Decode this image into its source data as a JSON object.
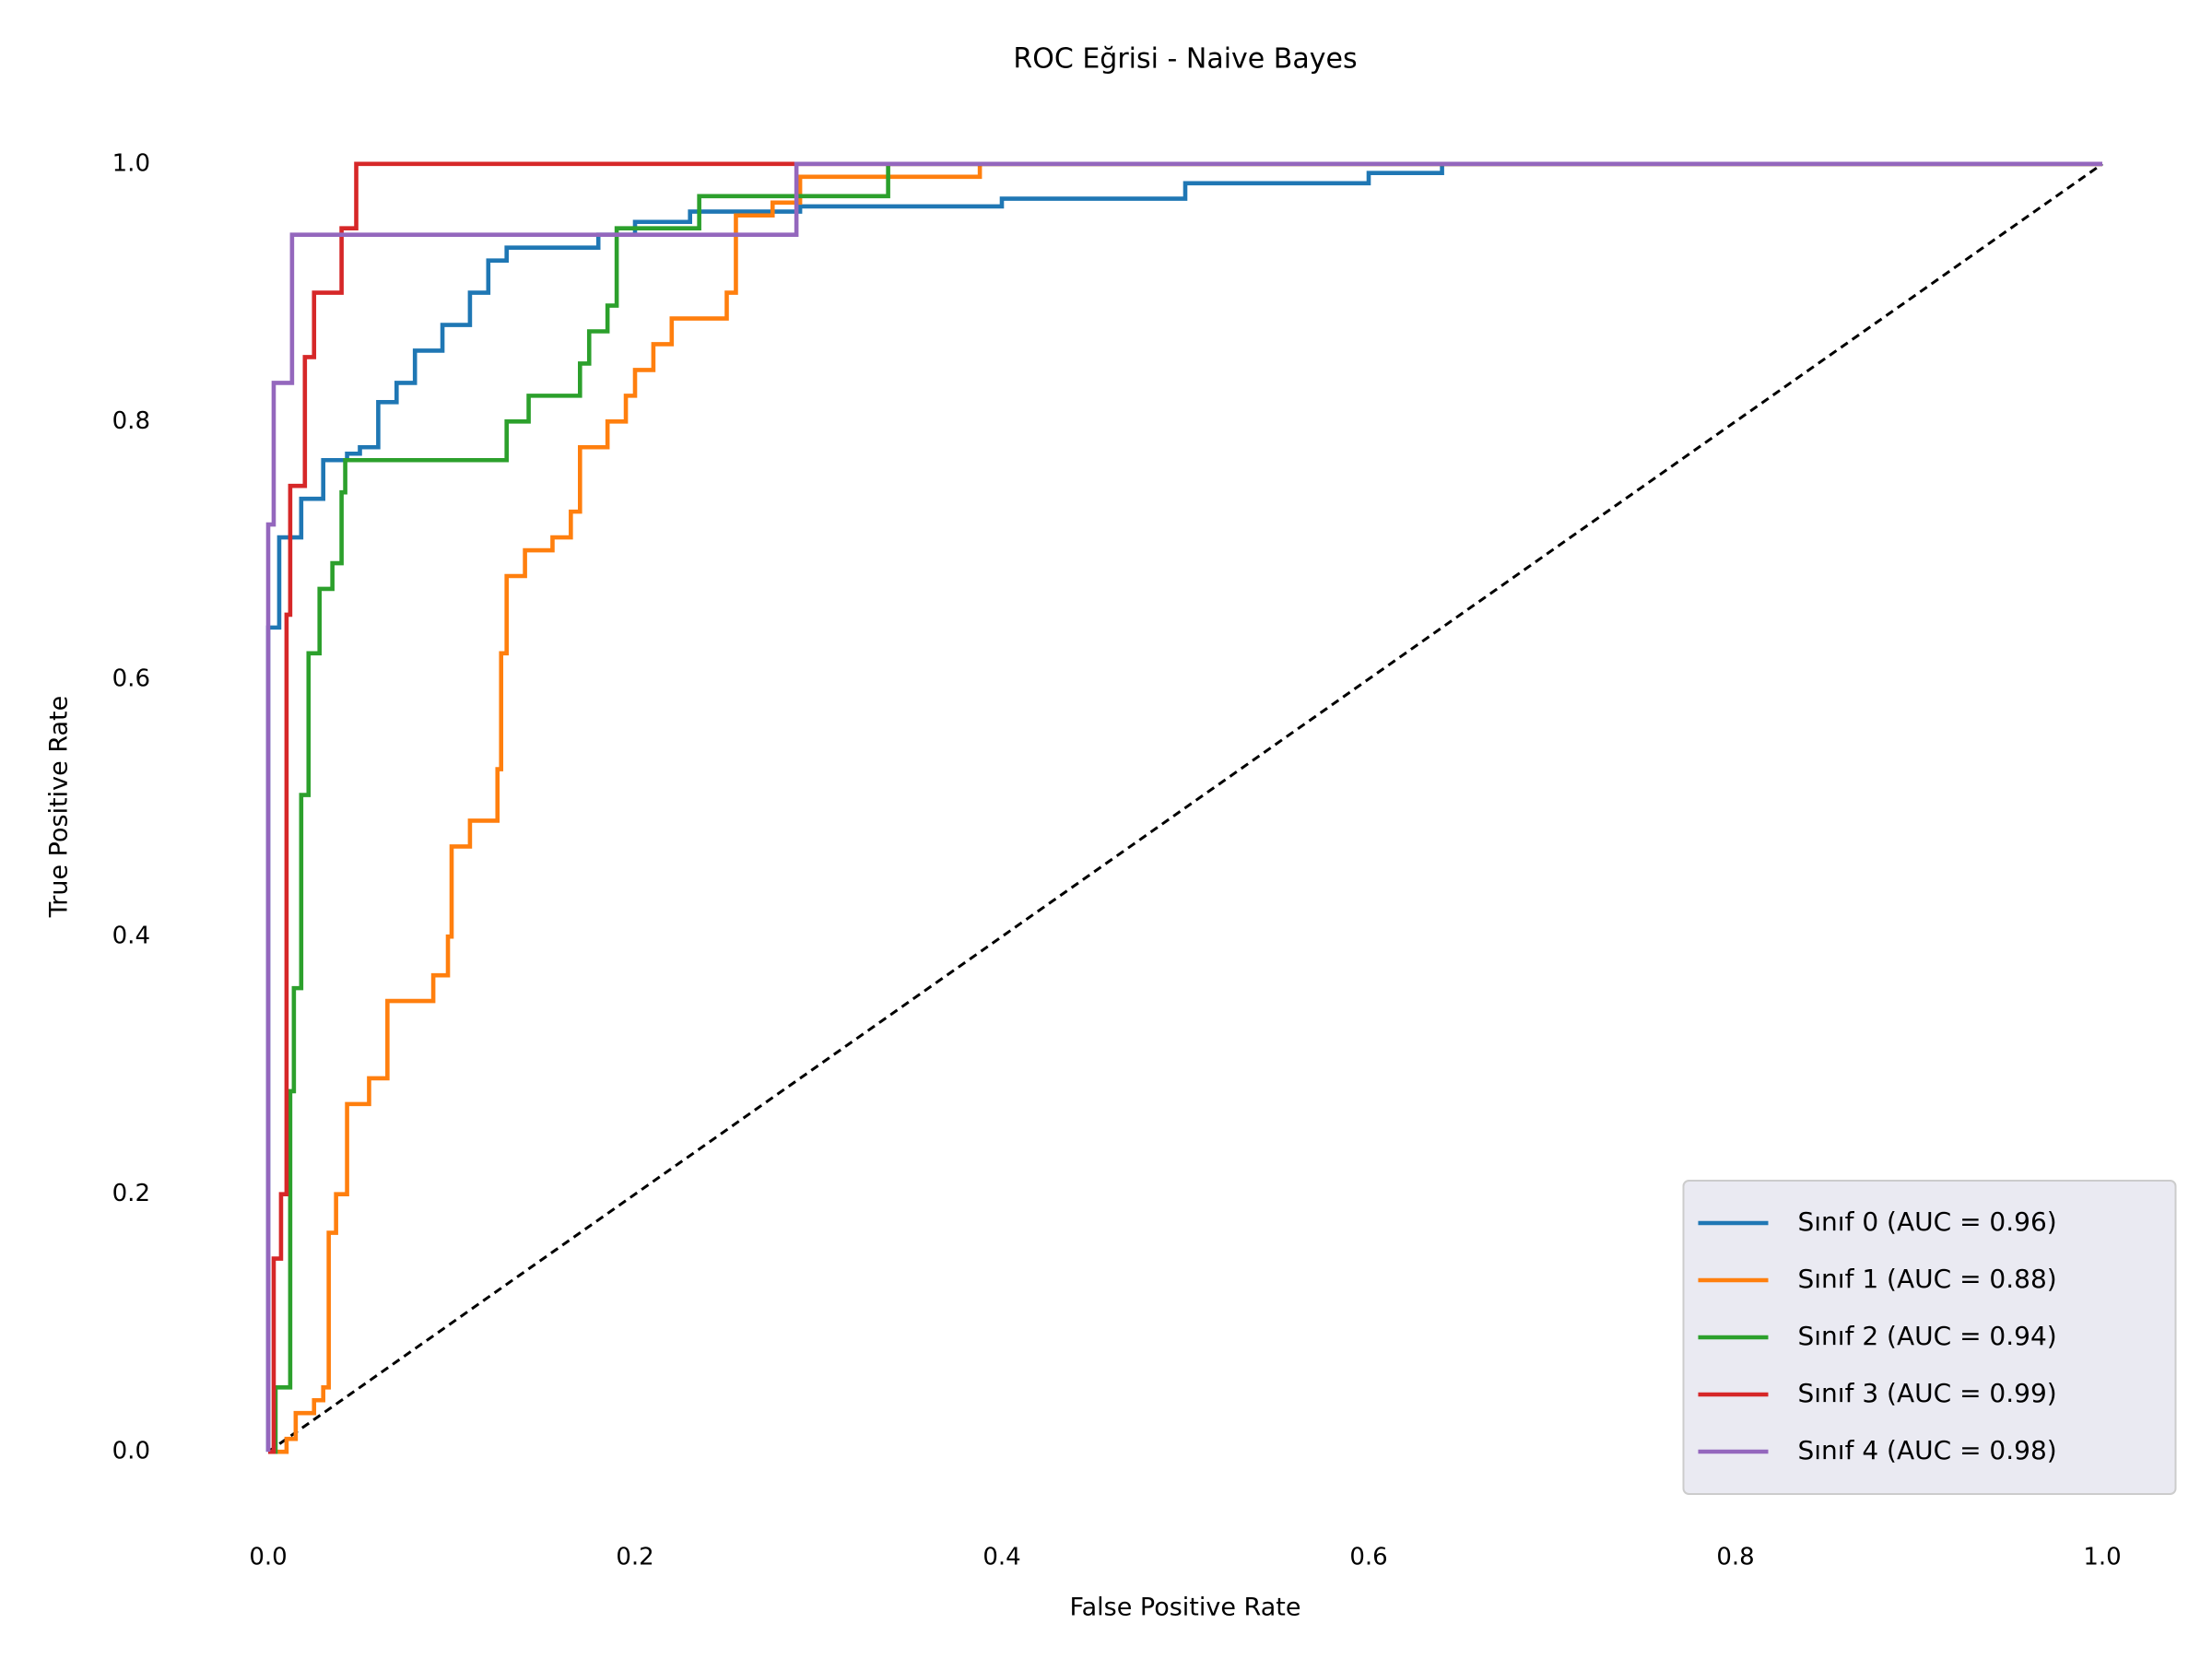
{
  "chart_data": {
    "type": "line",
    "title": "ROC Eğrisi - Naive Bayes",
    "xlabel": "False Positive Rate",
    "ylabel": "True Positive Rate",
    "xlim": [
      -0.05,
      1.05
    ],
    "ylim": [
      -0.05,
      1.05
    ],
    "xticks": [
      {
        "value": 0,
        "label": "0.0"
      },
      0.2,
      0.4,
      0.6,
      0.8,
      {
        "value": 1,
        "label": "1.0"
      }
    ],
    "yticks": [
      {
        "value": 0,
        "label": "0.0"
      },
      0.2,
      0.4,
      0.6,
      0.8,
      {
        "value": 1,
        "label": "1.0"
      }
    ],
    "legend": "lower right",
    "series": [
      {
        "name": "Sınıf 0 (AUC = 0.96)",
        "color": "#1f77b4",
        "x": [
          0,
          0,
          0,
          0.006,
          0.006,
          0.018,
          0.018,
          0.03,
          0.03,
          0.043,
          0.043,
          0.05,
          0.05,
          0.06,
          0.06,
          0.07,
          0.07,
          0.08,
          0.08,
          0.095,
          0.095,
          0.11,
          0.11,
          0.12,
          0.12,
          0.13,
          0.13,
          0.18,
          0.18,
          0.2,
          0.2,
          0.23,
          0.23,
          0.29,
          0.29,
          0.4,
          0.4,
          0.5,
          0.5,
          0.6,
          0.6,
          0.64,
          0.64,
          1
        ],
        "values": [
          0,
          0,
          0.64,
          0.64,
          0.71,
          0.71,
          0.74,
          0.74,
          0.77,
          0.77,
          0.775,
          0.775,
          0.78,
          0.78,
          0.815,
          0.815,
          0.83,
          0.83,
          0.855,
          0.855,
          0.875,
          0.875,
          0.9,
          0.9,
          0.925,
          0.925,
          0.935,
          0.935,
          0.945,
          0.945,
          0.955,
          0.955,
          0.963,
          0.963,
          0.967,
          0.967,
          0.973,
          0.973,
          0.985,
          0.985,
          0.993,
          0.993,
          1,
          1
        ]
      },
      {
        "name": "Sınıf 1 (AUC = 0.88)",
        "color": "#ff7f0e",
        "x": [
          0,
          0.01,
          0.01,
          0.015,
          0.015,
          0.025,
          0.025,
          0.03,
          0.03,
          0.033,
          0.033,
          0.037,
          0.037,
          0.043,
          0.043,
          0.055,
          0.055,
          0.065,
          0.065,
          0.09,
          0.09,
          0.098,
          0.098,
          0.1,
          0.1,
          0.11,
          0.11,
          0.125,
          0.125,
          0.127,
          0.127,
          0.13,
          0.13,
          0.14,
          0.14,
          0.155,
          0.155,
          0.165,
          0.165,
          0.17,
          0.17,
          0.185,
          0.185,
          0.195,
          0.195,
          0.2,
          0.2,
          0.21,
          0.21,
          0.22,
          0.22,
          0.25,
          0.25,
          0.255,
          0.255,
          0.275,
          0.275,
          0.29,
          0.29,
          0.388,
          0.388,
          1
        ],
        "values": [
          0,
          0,
          0.01,
          0.01,
          0.03,
          0.03,
          0.04,
          0.04,
          0.05,
          0.05,
          0.17,
          0.17,
          0.2,
          0.2,
          0.27,
          0.27,
          0.29,
          0.29,
          0.35,
          0.35,
          0.37,
          0.37,
          0.4,
          0.4,
          0.47,
          0.47,
          0.49,
          0.49,
          0.53,
          0.53,
          0.62,
          0.62,
          0.68,
          0.68,
          0.7,
          0.7,
          0.71,
          0.71,
          0.73,
          0.73,
          0.78,
          0.78,
          0.8,
          0.8,
          0.82,
          0.82,
          0.84,
          0.84,
          0.86,
          0.86,
          0.88,
          0.88,
          0.9,
          0.9,
          0.96,
          0.96,
          0.97,
          0.97,
          0.99,
          0.99,
          1,
          1
        ]
      },
      {
        "name": "Sınıf 2 (AUC = 0.94)",
        "color": "#2ca02c",
        "x": [
          0,
          0.004,
          0.004,
          0.012,
          0.012,
          0.014,
          0.014,
          0.018,
          0.018,
          0.022,
          0.022,
          0.028,
          0.028,
          0.035,
          0.035,
          0.04,
          0.04,
          0.042,
          0.042,
          0.13,
          0.13,
          0.142,
          0.142,
          0.17,
          0.17,
          0.175,
          0.175,
          0.185,
          0.185,
          0.19,
          0.19,
          0.235,
          0.235,
          0.338,
          0.338,
          1
        ],
        "values": [
          0,
          0,
          0.05,
          0.05,
          0.28,
          0.28,
          0.36,
          0.36,
          0.51,
          0.51,
          0.62,
          0.62,
          0.67,
          0.67,
          0.69,
          0.69,
          0.745,
          0.745,
          0.77,
          0.77,
          0.8,
          0.8,
          0.82,
          0.82,
          0.845,
          0.845,
          0.87,
          0.87,
          0.89,
          0.89,
          0.95,
          0.95,
          0.975,
          0.975,
          1,
          1
        ]
      },
      {
        "name": "Sınıf 3 (AUC = 0.99)",
        "color": "#d62728",
        "x": [
          0,
          0.003,
          0.003,
          0.007,
          0.007,
          0.01,
          0.01,
          0.012,
          0.012,
          0.02,
          0.02,
          0.025,
          0.025,
          0.04,
          0.04,
          0.048,
          0.048,
          1
        ],
        "values": [
          0,
          0,
          0.15,
          0.15,
          0.2,
          0.2,
          0.65,
          0.65,
          0.75,
          0.75,
          0.85,
          0.85,
          0.9,
          0.9,
          0.95,
          0.95,
          1,
          1
        ]
      },
      {
        "name": "Sınıf 4 (AUC = 0.98)",
        "color": "#9467bd",
        "x": [
          0,
          0,
          0,
          0.003,
          0.003,
          0.013,
          0.013,
          0.288,
          0.288,
          1
        ],
        "values": [
          0,
          0,
          0.72,
          0.72,
          0.83,
          0.83,
          0.945,
          0.945,
          1,
          1
        ]
      }
    ],
    "reference_line": {
      "x": [
        0,
        1
      ],
      "values": [
        0,
        1
      ],
      "color": "#000000"
    }
  }
}
